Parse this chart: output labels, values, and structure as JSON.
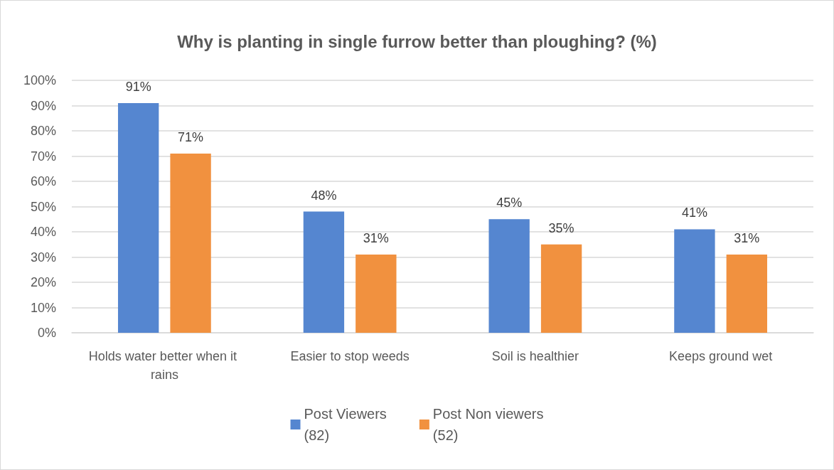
{
  "chart_data": {
    "type": "bar",
    "title": "Why is planting in single furrow better than ploughing? (%)",
    "categories": [
      "Holds water better when it rains",
      "Easier to stop weeds",
      "Soil is healthier",
      "Keeps ground wet"
    ],
    "series": [
      {
        "name": "Post Viewers (82)",
        "color": "#5586d0",
        "values": [
          91,
          48,
          45,
          41
        ],
        "value_labels": [
          "91%",
          "48%",
          "45%",
          "41%"
        ]
      },
      {
        "name": "Post Non viewers (52)",
        "color": "#f1913f",
        "values": [
          71,
          31,
          35,
          31
        ],
        "value_labels": [
          "71%",
          "31%",
          "35%",
          "31%"
        ]
      }
    ],
    "ylim": [
      0,
      100
    ],
    "yticks": [
      {
        "value": 0,
        "label": "0%"
      },
      {
        "value": 10,
        "label": "10%"
      },
      {
        "value": 20,
        "label": "20%"
      },
      {
        "value": 30,
        "label": "30%"
      },
      {
        "value": 40,
        "label": "40%"
      },
      {
        "value": 50,
        "label": "50%"
      },
      {
        "value": 60,
        "label": "60%"
      },
      {
        "value": 70,
        "label": "70%"
      },
      {
        "value": 80,
        "label": "80%"
      },
      {
        "value": 90,
        "label": "90%"
      },
      {
        "value": 100,
        "label": "100%"
      }
    ],
    "grid": "y",
    "legend": "bottom"
  }
}
